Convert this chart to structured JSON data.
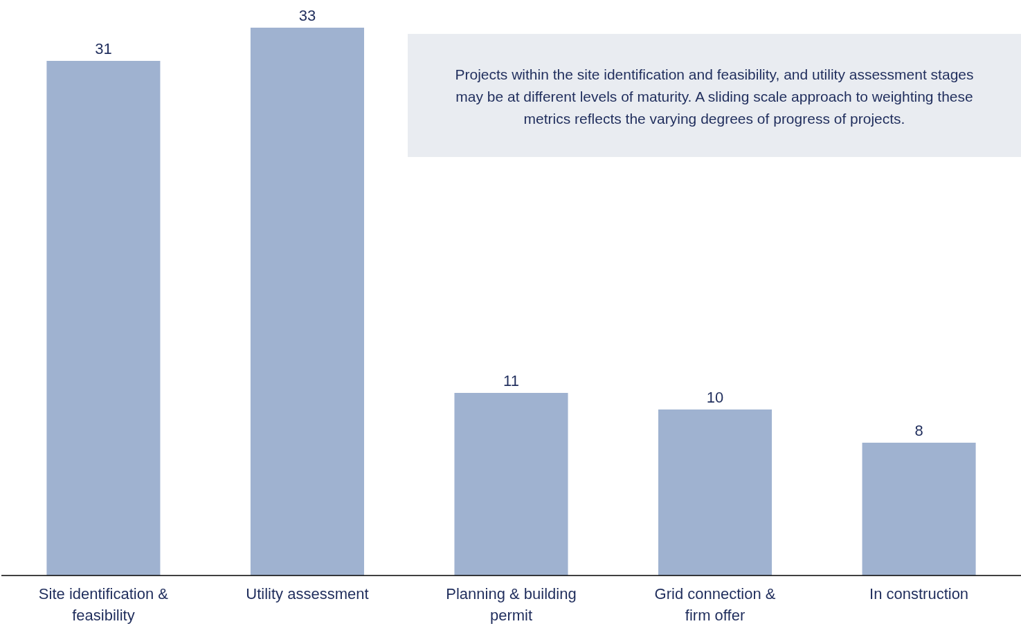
{
  "chart_data": {
    "type": "bar",
    "categories": [
      "Site identification & feasibility",
      "Utility assessment",
      "Planning & building permit",
      "Grid connection & firm offer",
      "In construction"
    ],
    "values": [
      31,
      33,
      11,
      10,
      8
    ],
    "color": "#9fb2d0",
    "data_labels": true,
    "annotations": [
      "Projects within the site identification and feasibility, and utility assessment stages may be at different levels of maturity. A sliding scale approach to weighting these metrics reflects the varying degrees of progress of projects."
    ]
  }
}
